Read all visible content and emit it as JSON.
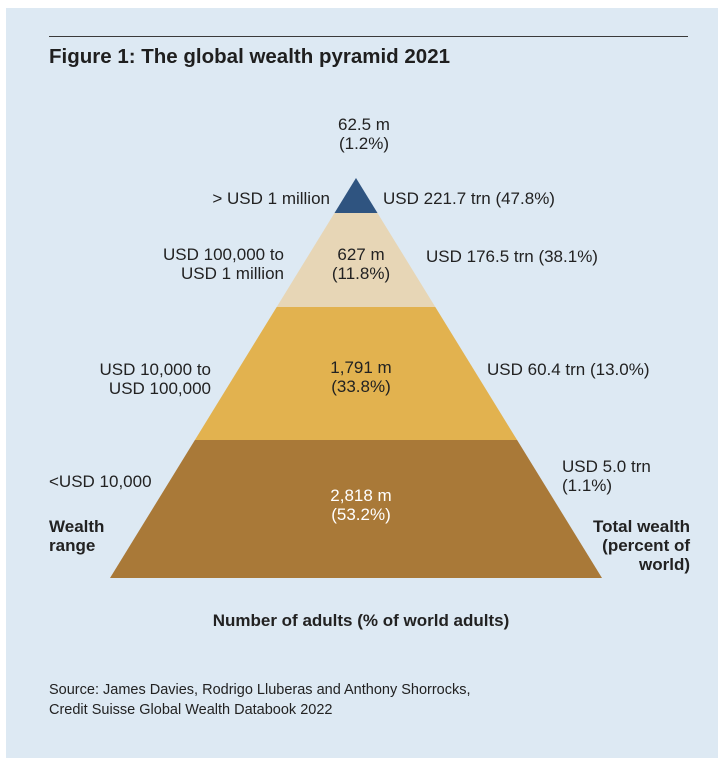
{
  "title": "Figure 1: The global wealth pyramid 2021",
  "chart_data": {
    "type": "pyramid",
    "title": "Figure 1: The global wealth pyramid 2021",
    "xlabel": "Number of adults (% of world adults)",
    "left_axis_title": [
      "Wealth",
      "range"
    ],
    "right_axis_title": [
      "Total wealth",
      "(percent of",
      "world)"
    ],
    "tiers": [
      {
        "wealth_range": [
          "> USD 1 million"
        ],
        "adults": "62.5 m",
        "adults_pct": "(1.2%)",
        "adults_millions": 62.5,
        "adults_share": 1.2,
        "total_wealth": [
          "USD 221.7 trn (47.8%)"
        ],
        "wealth_trn": 221.7,
        "wealth_share": 47.8,
        "color": "#2f5480"
      },
      {
        "wealth_range": [
          "USD 100,000 to",
          "USD 1 million"
        ],
        "adults": "627 m",
        "adults_pct": "(11.8%)",
        "adults_millions": 627,
        "adults_share": 11.8,
        "total_wealth": [
          "USD 176.5 trn (38.1%)"
        ],
        "wealth_trn": 176.5,
        "wealth_share": 38.1,
        "color": "#e7d6b6"
      },
      {
        "wealth_range": [
          "USD 10,000 to",
          "USD 100,000"
        ],
        "adults": "1,791 m",
        "adults_pct": "(33.8%)",
        "adults_millions": 1791,
        "adults_share": 33.8,
        "total_wealth": [
          "USD 60.4 trn (13.0%)"
        ],
        "wealth_trn": 60.4,
        "wealth_share": 13.0,
        "color": "#e2b24f"
      },
      {
        "wealth_range": [
          "<USD 10,000"
        ],
        "adults": "2,818 m",
        "adults_pct": "(53.2%)",
        "adults_millions": 2818,
        "adults_share": 53.2,
        "total_wealth": [
          "USD 5.0 trn",
          "(1.1%)"
        ],
        "wealth_trn": 5.0,
        "wealth_share": 1.1,
        "color": "#a97938"
      }
    ]
  },
  "source": [
    "Source: James Davies, Rodrigo Lluberas and Anthony Shorrocks,",
    "Credit Suisse Global Wealth Databook 2022"
  ]
}
